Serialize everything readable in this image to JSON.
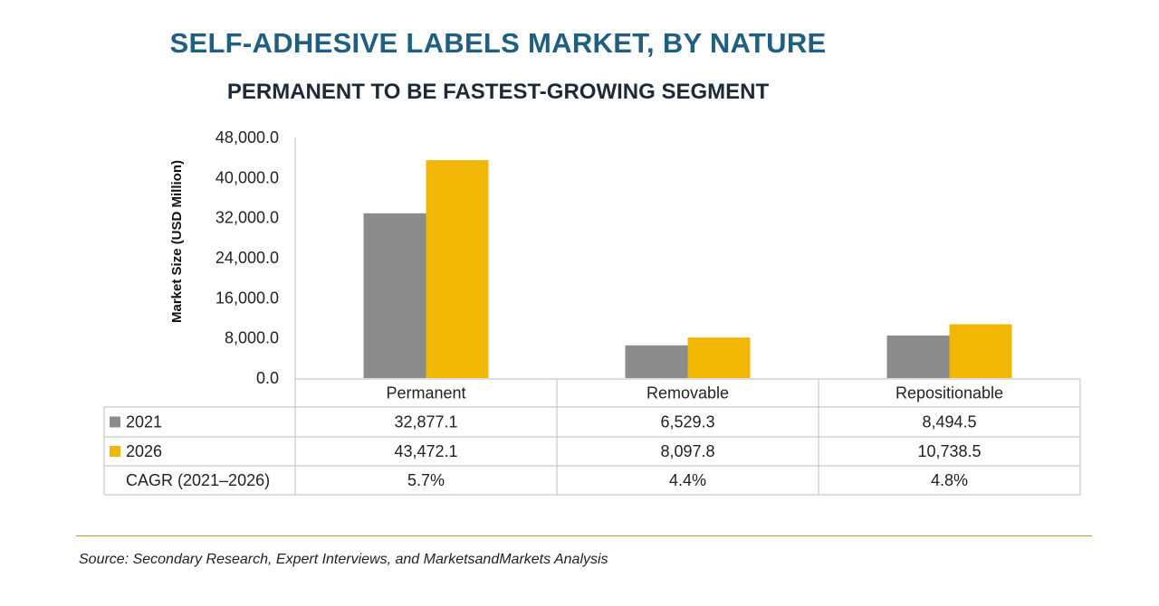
{
  "chart_data": {
    "type": "bar",
    "title": "SELF-ADHESIVE LABELS MARKET, BY NATURE",
    "subtitle": "PERMANENT TO BE FASTEST-GROWING SEGMENT",
    "ylabel": "Market Size (USD Million)",
    "xlabel": "",
    "ylim": [
      0,
      48000
    ],
    "yticks": [
      "0.0",
      "8,000.0",
      "16,000.0",
      "24,000.0",
      "32,000.0",
      "40,000.0",
      "48,000.0"
    ],
    "ytick_values": [
      0,
      8000,
      16000,
      24000,
      32000,
      40000,
      48000
    ],
    "categories": [
      "Permanent",
      "Removable",
      "Repositionable"
    ],
    "series": [
      {
        "name": "2021",
        "color": "#8c8c8c",
        "values": [
          32877.1,
          6529.3,
          8494.5
        ],
        "labels": [
          "32,877.1",
          "6,529.3",
          "8,494.5"
        ]
      },
      {
        "name": "2026",
        "color": "#f2b705",
        "values": [
          43472.1,
          8097.8,
          10738.5
        ],
        "labels": [
          "43,472.1",
          "8,097.8",
          "10,738.5"
        ]
      }
    ],
    "table_extra_row": {
      "name": "CAGR (2021–2026)",
      "values": [
        "5.7%",
        "4.4%",
        "4.8%"
      ]
    },
    "grid": false
  },
  "footer": {
    "source": "Source: Secondary Research, Expert Interviews, and MarketsandMarkets Analysis"
  }
}
